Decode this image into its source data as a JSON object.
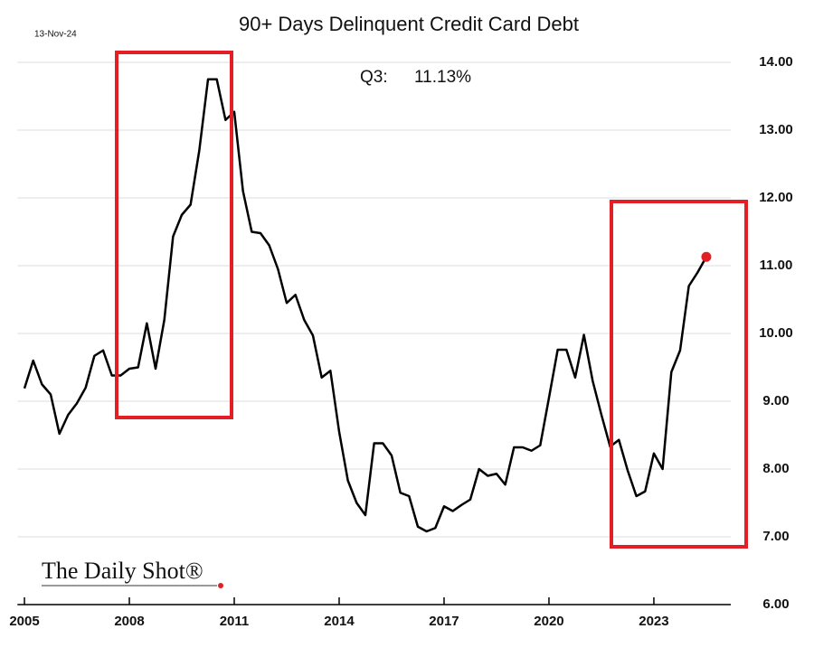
{
  "chart_data": {
    "type": "line",
    "title": "90+ Days Delinquent Credit Card Debt",
    "date": "13-Nov-24",
    "annotation": {
      "label": "Q3:",
      "value": "11.13%"
    },
    "logo": "The Daily Shot®",
    "x": [
      2005,
      2005.25,
      2005.5,
      2005.75,
      2006,
      2006.25,
      2006.5,
      2006.75,
      2007,
      2007.25,
      2007.5,
      2007.75,
      2008,
      2008.25,
      2008.5,
      2008.75,
      2009,
      2009.25,
      2009.5,
      2009.75,
      2010,
      2010.25,
      2010.5,
      2010.75,
      2011,
      2011.25,
      2011.5,
      2011.75,
      2012,
      2012.25,
      2012.5,
      2012.75,
      2013,
      2013.25,
      2013.5,
      2013.75,
      2014,
      2014.25,
      2014.5,
      2014.75,
      2015,
      2015.25,
      2015.5,
      2015.75,
      2016,
      2016.25,
      2016.5,
      2016.75,
      2017,
      2017.25,
      2017.5,
      2017.75,
      2018,
      2018.25,
      2018.5,
      2018.75,
      2019,
      2019.25,
      2019.5,
      2019.75,
      2020,
      2020.25,
      2020.5,
      2020.75,
      2021,
      2021.25,
      2021.5,
      2021.75,
      2022,
      2022.25,
      2022.5,
      2022.75,
      2023,
      2023.25,
      2023.5,
      2023.75,
      2024,
      2024.25,
      2024.5
    ],
    "values": [
      9.19,
      9.6,
      9.25,
      9.1,
      8.52,
      8.8,
      8.97,
      9.2,
      9.67,
      9.75,
      9.38,
      9.38,
      9.48,
      9.5,
      10.15,
      9.48,
      10.2,
      11.43,
      11.75,
      11.9,
      12.7,
      13.75,
      13.75,
      13.15,
      13.27,
      12.1,
      11.5,
      11.48,
      11.3,
      10.95,
      10.45,
      10.57,
      10.2,
      9.97,
      9.35,
      9.45,
      8.55,
      7.83,
      7.5,
      7.32,
      8.38,
      8.38,
      8.2,
      7.65,
      7.6,
      7.15,
      7.08,
      7.13,
      7.45,
      7.38,
      7.47,
      7.55,
      8.0,
      7.9,
      7.93,
      7.77,
      8.32,
      8.32,
      8.27,
      8.35,
      9.05,
      9.76,
      9.76,
      9.35,
      9.98,
      9.3,
      8.8,
      8.33,
      8.43,
      7.98,
      7.6,
      7.67,
      8.23,
      8.0,
      9.43,
      9.75,
      10.7,
      10.9,
      11.13
    ],
    "color": "#000000",
    "marker_color": "#e31e24",
    "xlim": [
      2004.8,
      2025.2
    ],
    "xticks": [
      2005,
      2008,
      2011,
      2014,
      2017,
      2020,
      2023
    ],
    "ylim": [
      6,
      14.3
    ],
    "yticks": [
      {
        "value": 6,
        "label": "6.00"
      },
      {
        "value": 7,
        "label": "7.00"
      },
      {
        "value": 8,
        "label": "8.00"
      },
      {
        "value": 9,
        "label": "9.00"
      },
      {
        "value": 10,
        "label": "10.00"
      },
      {
        "value": 11,
        "label": "11.00"
      },
      {
        "value": 12,
        "label": "12.00"
      },
      {
        "value": 13,
        "label": "13.00"
      },
      {
        "value": 14,
        "label": "14.00"
      }
    ],
    "grid": true
  }
}
